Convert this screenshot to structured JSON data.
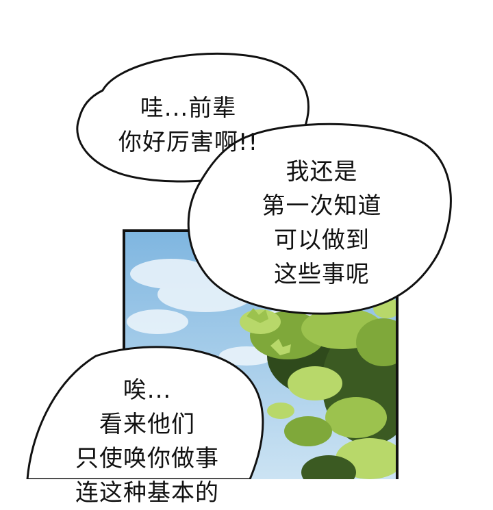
{
  "scene": {
    "sky_top": "#7fb6e0",
    "sky_bottom": "#cfe5f4",
    "cloud": "#eef6fc",
    "leaf_light": "#b8d86a",
    "leaf_mid": "#7fa83a",
    "leaf_dark": "#2f4a1c",
    "panel_border": "#111111"
  },
  "bubbles": [
    {
      "lines": [
        "哇...前辈",
        "你好厉害啊!!"
      ]
    },
    {
      "lines": [
        "我还是",
        "第一次知道",
        "可以做到",
        "这些事呢"
      ]
    },
    {
      "lines": [
        "唉...",
        "看来他们",
        "只使唤你做事",
        "连这种基本的"
      ]
    }
  ]
}
